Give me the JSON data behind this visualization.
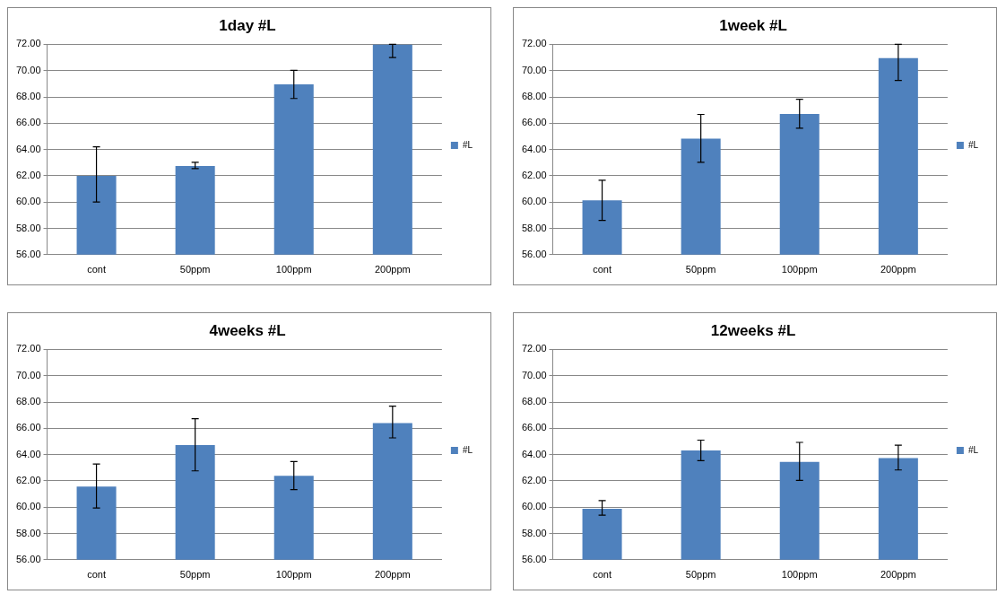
{
  "chart_data": [
    {
      "type": "bar",
      "title": "1day #L",
      "categories": [
        "cont",
        "50ppm",
        "100ppm",
        "200ppm"
      ],
      "series": [
        {
          "name": "#L",
          "color": "#4f81bd",
          "values": [
            62.0,
            62.74,
            68.95,
            72.0
          ],
          "errors": [
            [
              60.0,
              64.2
            ],
            [
              62.55,
              63.02
            ],
            [
              67.88,
              70.02
            ],
            [
              71.0,
              72.0
            ]
          ]
        }
      ],
      "ylim": [
        56,
        72
      ],
      "yticks": [
        {
          "value": 56,
          "label": "56.00"
        },
        {
          "value": 58,
          "label": "58.00"
        },
        {
          "value": 60,
          "label": "60.00"
        },
        {
          "value": 62,
          "label": "62.00"
        },
        {
          "value": 64,
          "label": "64.00"
        },
        {
          "value": 66,
          "label": "66.00"
        },
        {
          "value": 68,
          "label": "68.00"
        },
        {
          "value": 70,
          "label": "70.00"
        },
        {
          "value": 72,
          "label": "72.00"
        }
      ],
      "grid": "y",
      "legend": "right"
    },
    {
      "type": "bar",
      "title": "1week #L",
      "categories": [
        "cont",
        "50ppm",
        "100ppm",
        "200ppm"
      ],
      "series": [
        {
          "name": "#L",
          "color": "#4f81bd",
          "values": [
            60.13,
            64.83,
            66.7,
            70.95
          ],
          "errors": [
            [
              58.6,
              61.66
            ],
            [
              63.02,
              66.67
            ],
            [
              65.62,
              67.82
            ],
            [
              69.25,
              72.0
            ]
          ]
        }
      ],
      "ylim": [
        56,
        72
      ],
      "yticks": [
        {
          "value": 56,
          "label": "56.00"
        },
        {
          "value": 58,
          "label": "58.00"
        },
        {
          "value": 60,
          "label": "60.00"
        },
        {
          "value": 62,
          "label": "62.00"
        },
        {
          "value": 64,
          "label": "64.00"
        },
        {
          "value": 66,
          "label": "66.00"
        },
        {
          "value": 68,
          "label": "68.00"
        },
        {
          "value": 70,
          "label": "70.00"
        },
        {
          "value": 72,
          "label": "72.00"
        }
      ],
      "grid": "y",
      "legend": "right"
    },
    {
      "type": "bar",
      "title": "4weeks #L",
      "categories": [
        "cont",
        "50ppm",
        "100ppm",
        "200ppm"
      ],
      "series": [
        {
          "name": "#L",
          "color": "#4f81bd",
          "values": [
            61.56,
            64.72,
            62.38,
            66.39
          ],
          "errors": [
            [
              59.94,
              63.28
            ],
            [
              62.76,
              66.73
            ],
            [
              61.33,
              63.47
            ],
            [
              65.27,
              67.68
            ]
          ]
        }
      ],
      "ylim": [
        56,
        72
      ],
      "yticks": [
        {
          "value": 56,
          "label": "56.00"
        },
        {
          "value": 58,
          "label": "58.00"
        },
        {
          "value": 60,
          "label": "60.00"
        },
        {
          "value": 62,
          "label": "62.00"
        },
        {
          "value": 64,
          "label": "64.00"
        },
        {
          "value": 66,
          "label": "66.00"
        },
        {
          "value": 68,
          "label": "68.00"
        },
        {
          "value": 70,
          "label": "70.00"
        },
        {
          "value": 72,
          "label": "72.00"
        }
      ],
      "grid": "y",
      "legend": "right"
    },
    {
      "type": "bar",
      "title": "12weeks #L",
      "categories": [
        "cont",
        "50ppm",
        "100ppm",
        "200ppm"
      ],
      "series": [
        {
          "name": "#L",
          "color": "#4f81bd",
          "values": [
            59.87,
            64.31,
            63.45,
            63.74
          ],
          "errors": [
            [
              59.39,
              60.5
            ],
            [
              63.54,
              65.1
            ],
            [
              62.04,
              64.93
            ],
            [
              62.83,
              64.72
            ]
          ]
        }
      ],
      "ylim": [
        56,
        72
      ],
      "yticks": [
        {
          "value": 56,
          "label": "56.00"
        },
        {
          "value": 58,
          "label": "58.00"
        },
        {
          "value": 60,
          "label": "60.00"
        },
        {
          "value": 62,
          "label": "62.00"
        },
        {
          "value": 64,
          "label": "64.00"
        },
        {
          "value": 66,
          "label": "66.00"
        },
        {
          "value": 68,
          "label": "68.00"
        },
        {
          "value": 70,
          "label": "70.00"
        },
        {
          "value": 72,
          "label": "72.00"
        }
      ],
      "grid": "y",
      "legend": "right"
    }
  ]
}
